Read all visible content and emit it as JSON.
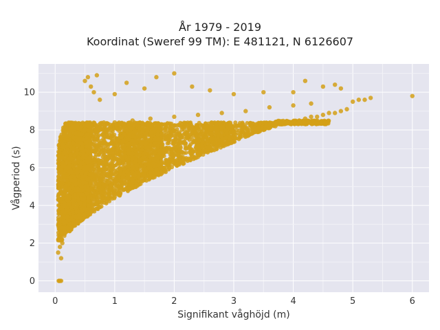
{
  "chart_data": {
    "type": "scatter",
    "title_lines": [
      "År 1979 - 2019",
      "Koordinat (Sweref 99 TM): E 481121, N 6126607"
    ],
    "xlabel": "Signifikant våghöjd (m)",
    "ylabel": "Vågperiod (s)",
    "xlim": [
      -0.28,
      6.28
    ],
    "ylim": [
      -0.6,
      11.5
    ],
    "xticks": [
      0,
      1,
      2,
      3,
      4,
      5,
      6
    ],
    "yticks": [
      0,
      2,
      4,
      6,
      8,
      10
    ],
    "xtick_labels": [
      "0",
      "1",
      "2",
      "3",
      "4",
      "5",
      "6"
    ],
    "ytick_labels": [
      "0",
      "2",
      "4",
      "6",
      "8",
      "10"
    ],
    "grid": true,
    "legend": "none",
    "marker_color": "#D4A017",
    "plot_bg": "#E5E5EF",
    "series": [
      {
        "values_note": "dense cloud of points; representative sample",
        "x": [
          0.06,
          0.07,
          0.08,
          0.1,
          0.05,
          0.08,
          0.1,
          0.12,
          0.15,
          0.2,
          0.25,
          0.3,
          0.35,
          0.4,
          0.45,
          0.5,
          0.6,
          0.7,
          0.8,
          0.9,
          1.0,
          1.1,
          1.2,
          1.3,
          1.4,
          1.5,
          1.6,
          1.7,
          1.8,
          1.9,
          2.0,
          2.1,
          2.2,
          2.3,
          2.4,
          2.5,
          2.6,
          2.7,
          2.8,
          2.9,
          3.0,
          3.1,
          3.2,
          3.3,
          3.4,
          3.5,
          3.6,
          3.7,
          3.8,
          3.9,
          4.0,
          4.1,
          4.2,
          4.3,
          4.4,
          4.5,
          4.6,
          4.7,
          4.8,
          4.9,
          5.0,
          5.1,
          5.2,
          5.3,
          6.0,
          0.5,
          0.55,
          0.6,
          0.65,
          0.7,
          0.75,
          1.0,
          1.2,
          1.5,
          1.7,
          2.0,
          2.3,
          2.6,
          3.0,
          3.5,
          4.0,
          4.2,
          4.5,
          4.7,
          4.8,
          0.3,
          0.35,
          0.4,
          0.2,
          0.15,
          0.25,
          0.3,
          0.5,
          0.8,
          1.0,
          1.3,
          1.6,
          2.0,
          2.4,
          2.8,
          3.2,
          3.6,
          4.0,
          4.3
        ],
        "y": [
          0.0,
          0.0,
          0.0,
          0.0,
          1.5,
          1.8,
          1.2,
          2.0,
          2.5,
          2.8,
          3.0,
          3.2,
          3.4,
          3.5,
          3.7,
          3.8,
          4.0,
          4.2,
          4.4,
          4.6,
          4.8,
          5.0,
          5.1,
          5.3,
          5.5,
          5.6,
          5.7,
          5.9,
          6.0,
          6.1,
          6.2,
          6.4,
          6.5,
          6.6,
          6.8,
          6.9,
          7.0,
          7.1,
          7.2,
          7.3,
          7.4,
          7.6,
          7.7,
          7.8,
          7.9,
          8.0,
          8.1,
          8.2,
          8.3,
          8.4,
          8.4,
          8.5,
          8.6,
          8.7,
          8.7,
          8.8,
          8.9,
          8.9,
          9.0,
          9.1,
          9.5,
          9.6,
          9.6,
          9.7,
          9.8,
          10.6,
          10.8,
          10.3,
          10.0,
          10.9,
          9.6,
          9.9,
          10.5,
          10.2,
          10.8,
          11.0,
          10.3,
          10.1,
          9.9,
          10.0,
          10.0,
          10.6,
          10.3,
          10.4,
          10.2,
          7.0,
          7.8,
          7.5,
          6.0,
          5.5,
          6.5,
          7.3,
          8.0,
          8.3,
          8.4,
          8.5,
          8.6,
          8.7,
          8.8,
          8.9,
          9.0,
          9.2,
          9.3,
          9.4
        ]
      }
    ]
  }
}
